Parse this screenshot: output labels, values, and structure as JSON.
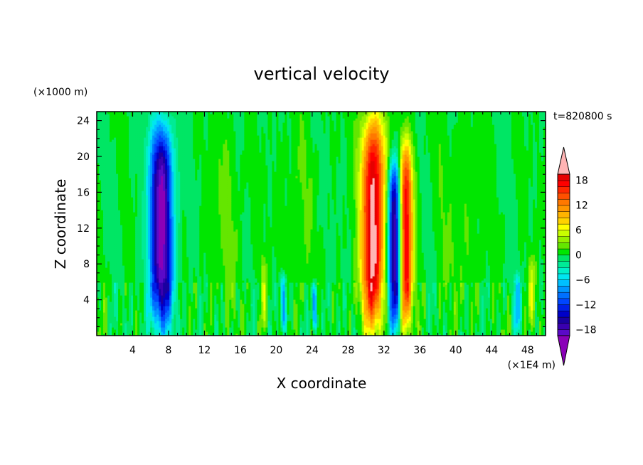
{
  "chart_data": {
    "type": "heatmap",
    "title": "vertical velocity",
    "xlabel": "X coordinate",
    "ylabel": "Z coordinate",
    "x_unit": "(×1E4 m)",
    "y_unit": "(×1000 m)",
    "time_label": "t=820800 s",
    "xlim": [
      0,
      50
    ],
    "ylim": [
      0,
      25
    ],
    "x_ticks": [
      4,
      8,
      12,
      16,
      20,
      24,
      28,
      32,
      36,
      40,
      44,
      48
    ],
    "y_ticks": [
      4,
      8,
      12,
      16,
      20,
      24
    ],
    "grid": false,
    "colorbar": {
      "levels": [
        -21,
        -19.5,
        -18,
        -16.5,
        -15,
        -13.5,
        -12,
        -10.5,
        -9,
        -7.5,
        -6,
        -4.5,
        -3,
        -1.5,
        0,
        1.5,
        3,
        4.5,
        6,
        7.5,
        9,
        10.5,
        12,
        13.5,
        15,
        16.5,
        18,
        19.5,
        21
      ],
      "colors": [
        "#8a00b8",
        "#5a0ac8",
        "#3a00b0",
        "#1a00a0",
        "#0000c8",
        "#0020e6",
        "#0046ff",
        "#0070ff",
        "#0096ff",
        "#00c0ff",
        "#00e6f0",
        "#00f0c8",
        "#00eb96",
        "#00e664",
        "#00e600",
        "#64e600",
        "#96f000",
        "#c8ff00",
        "#ffff00",
        "#ffd200",
        "#ffb400",
        "#ff9600",
        "#ff7800",
        "#ff5000",
        "#ff2800",
        "#ff0000",
        "#e60000",
        "#ffb4b4"
      ],
      "labels": [
        18,
        12,
        6,
        0,
        -6,
        -12,
        -18
      ]
    },
    "features": [
      {
        "x": 7.2,
        "z_bottom": 0.5,
        "z_top": 24,
        "w_peak": -20,
        "width": 1.3
      },
      {
        "x": 30.8,
        "z_bottom": 0.5,
        "z_top": 25,
        "w_peak": 21,
        "width": 1.3
      },
      {
        "x": 33.2,
        "z_bottom": 0.5,
        "z_top": 20,
        "w_peak": -20,
        "width": 0.75
      },
      {
        "x": 34.4,
        "z_bottom": 0.5,
        "z_top": 22,
        "w_peak": 19,
        "width": 0.8
      },
      {
        "x": 20.8,
        "z_bottom": 0.5,
        "z_top": 7,
        "w_peak": -9,
        "width": 0.35
      },
      {
        "x": 24.3,
        "z_bottom": 0.5,
        "z_top": 6,
        "w_peak": -10,
        "width": 0.3
      },
      {
        "x": 18.6,
        "z_bottom": 0.5,
        "z_top": 9,
        "w_peak": 4,
        "width": 0.4
      },
      {
        "x": 46.8,
        "z_bottom": 0.5,
        "z_top": 7,
        "w_peak": -7,
        "width": 0.35
      },
      {
        "x": 48.5,
        "z_bottom": 0.5,
        "z_top": 9,
        "w_peak": 5,
        "width": 0.45
      },
      {
        "x": 14.5,
        "z_bottom": 0.5,
        "z_top": 25,
        "w_peak": 1.5,
        "width": 2.0
      },
      {
        "x": 22.5,
        "z_bottom": 0.5,
        "z_top": 25,
        "w_peak": 1.4,
        "width": 1.6
      },
      {
        "x": 40.5,
        "z_bottom": 0.5,
        "z_top": 25,
        "w_peak": 1.4,
        "width": 2.5
      }
    ]
  }
}
